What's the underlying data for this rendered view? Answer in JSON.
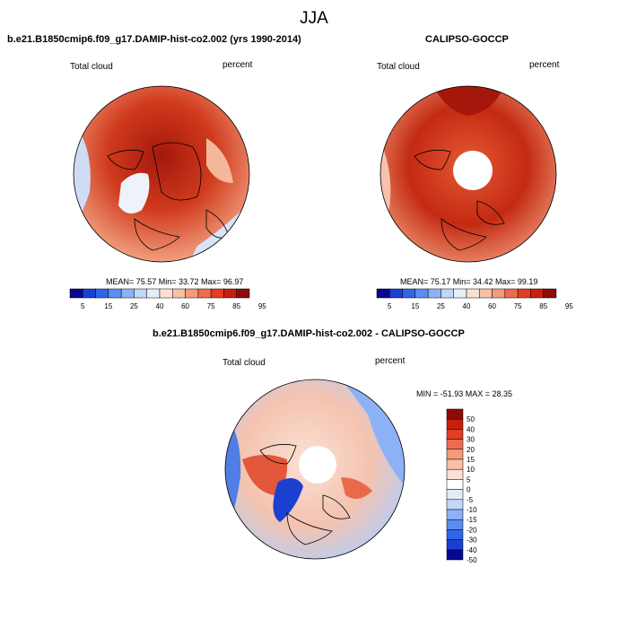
{
  "season": "JJA",
  "panels": [
    {
      "title": "b.e21.B1850cmip6.f09_g17.DAMIP-hist-co2.002 (yrs 1990-2014)",
      "left_label": "Total cloud",
      "right_label": "percent",
      "stats": "MEAN=  75.57  Min=  33.72  Max=  96.97"
    },
    {
      "title": "CALIPSO-GOCCP",
      "left_label": "Total cloud",
      "right_label": "percent",
      "stats": "MEAN=  75.17  Min=  34.42  Max=  99.19"
    },
    {
      "title": "b.e21.B1850cmip6.f09_g17.DAMIP-hist-co2.002 - CALIPSO-GOCCP",
      "left_label": "Total cloud",
      "right_label": "percent",
      "stats": "MIN = -51.93 MAX =  28.35"
    }
  ],
  "colorbar_abs": {
    "ticks": [
      "5",
      "15",
      "25",
      "40",
      "60",
      "75",
      "85",
      "95"
    ],
    "colors": [
      "#08088c",
      "#1a3fd4",
      "#2f66e8",
      "#5a8ef0",
      "#8cb2f5",
      "#c0d6fa",
      "#e8eef8",
      "#fbe0d3",
      "#f8c0a6",
      "#f49b7c",
      "#ee6c4e",
      "#e23e23",
      "#c8200f",
      "#8f0b06"
    ]
  },
  "colorbar_diff": {
    "ticks": [
      "50",
      "40",
      "30",
      "20",
      "15",
      "10",
      "5",
      "0",
      "-5",
      "-10",
      "-15",
      "-20",
      "-30",
      "-40",
      "-50"
    ],
    "colors": [
      "#8f0b06",
      "#c8200f",
      "#e23e23",
      "#ee6c4e",
      "#f49b7c",
      "#f8c0a6",
      "#fbe0d3",
      "#ffffff",
      "#e4ecfa",
      "#c0d6fa",
      "#8cb2f5",
      "#5a8ef0",
      "#2f66e8",
      "#1a3fd4",
      "#08088c"
    ]
  },
  "colors": {
    "high": "#c42a12",
    "mid": "#f0a080",
    "low": "#c8d8f4",
    "neg": "#3f6fe0",
    "coast": "#000000"
  }
}
